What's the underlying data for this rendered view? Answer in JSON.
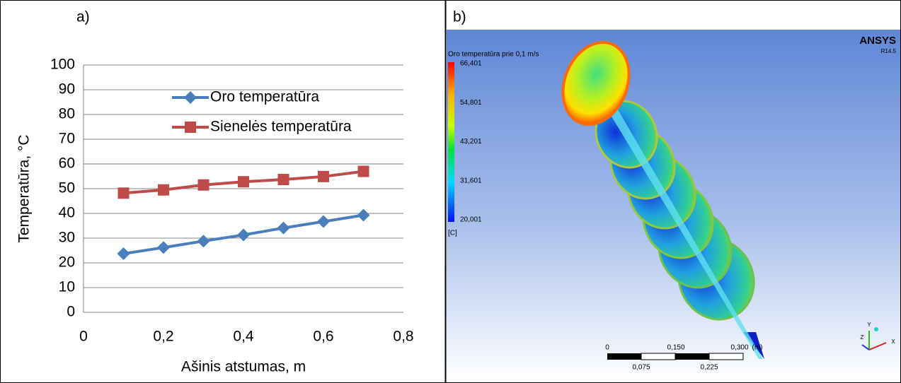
{
  "chart_data": {
    "type": "line",
    "panel_label": "a)",
    "x": [
      0.1,
      0.2,
      0.3,
      0.4,
      0.5,
      0.6,
      0.7
    ],
    "series": [
      {
        "name": "Oro temperatūra",
        "color": "#4a7ebb",
        "marker": "diamond",
        "values": [
          23.7,
          26.2,
          28.8,
          31.3,
          34.1,
          36.7,
          39.3
        ]
      },
      {
        "name": "Sienelės temperatūra",
        "color": "#be4b48",
        "marker": "square",
        "values": [
          48.2,
          49.5,
          51.5,
          52.8,
          53.7,
          54.9,
          57.0
        ]
      }
    ],
    "xlabel": "Ašinis atstumas, m",
    "ylabel": "Temperatūra, °C",
    "xlim": [
      0,
      0.8
    ],
    "ylim": [
      0,
      100
    ],
    "xticks": [
      0,
      {
        "value": 0.2,
        "label": "0,2"
      },
      {
        "value": 0.4,
        "label": "0,4"
      },
      {
        "value": 0.6,
        "label": "0,6"
      },
      {
        "value": 0.8,
        "label": "0,8"
      }
    ],
    "yticks": [
      0,
      10,
      20,
      30,
      40,
      50,
      60,
      70,
      80,
      90,
      100
    ],
    "grid": true,
    "legend": "upper center"
  },
  "simulation": {
    "panel_label": "b)",
    "legend_title": "Oro temperatūra prie 0,1 m/s",
    "colorbar_labels": [
      "66,401",
      "54,801",
      "43,201",
      "31,601",
      "20,001"
    ],
    "unit": "[C]",
    "brand": "ANSYS",
    "version": "R14.5",
    "scale_top": [
      "0",
      "0,150",
      "0,300",
      "(m)"
    ],
    "scale_bottom": [
      "0,075",
      "0,225"
    ],
    "axes": [
      "Y",
      "X",
      "Z"
    ]
  }
}
